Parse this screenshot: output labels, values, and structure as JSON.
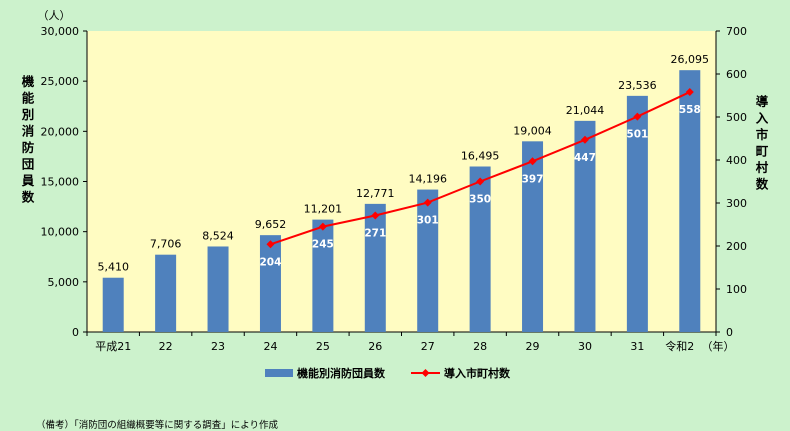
{
  "chart_data": {
    "type": "bar+line",
    "categories": [
      "平成21",
      "22",
      "23",
      "24",
      "25",
      "26",
      "27",
      "28",
      "29",
      "30",
      "31",
      "令和2"
    ],
    "x_unit": "（年）",
    "series": [
      {
        "name": "機能別消防団員数",
        "type": "bar",
        "axis": "left",
        "color": "#4f81bd",
        "values": [
          5410,
          7706,
          8524,
          9652,
          11201,
          12771,
          14196,
          16495,
          19004,
          21044,
          23536,
          26095
        ],
        "labels": [
          "5,410",
          "7,706",
          "8,524",
          "9,652",
          "11,201",
          "12,771",
          "14,196",
          "16,495",
          "19,004",
          "21,044",
          "23,536",
          "26,095"
        ]
      },
      {
        "name": "導入市町村数",
        "type": "line",
        "axis": "right",
        "color": "#ff0000",
        "values": [
          null,
          null,
          null,
          204,
          245,
          271,
          301,
          350,
          397,
          447,
          501,
          558
        ],
        "labels": [
          "",
          "",
          "",
          "204",
          "245",
          "271",
          "301",
          "350",
          "397",
          "447",
          "501",
          "558"
        ]
      }
    ],
    "y_left": {
      "unit": "（人）",
      "title": "機能別消防団員数",
      "lim": [
        0,
        30000
      ],
      "ticks": [
        0,
        5000,
        10000,
        15000,
        20000,
        25000,
        30000
      ],
      "tick_labels": [
        "0",
        "5,000",
        "10,000",
        "15,000",
        "20,000",
        "25,000",
        "30,000"
      ]
    },
    "y_right": {
      "title": "導入市町村数",
      "lim": [
        0,
        700
      ],
      "ticks": [
        0,
        100,
        200,
        300,
        400,
        500,
        600,
        700
      ],
      "tick_labels": [
        "0",
        "100",
        "200",
        "300",
        "400",
        "500",
        "600",
        "700"
      ]
    },
    "plot_background": "#fffcc2",
    "grid": false,
    "legend_position": "bottom"
  },
  "note": "（備考）「消防団の組織概要等に関する調査」により作成"
}
